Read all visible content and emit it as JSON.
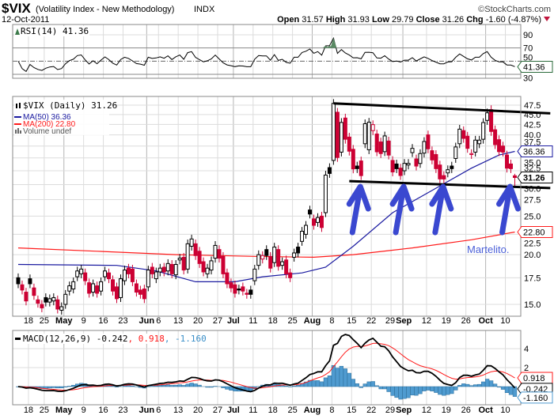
{
  "header": {
    "symbol": "$VIX",
    "name": "(Volatility Index - New Methodology)",
    "exchange": "INDX",
    "date": "12-Oct-2011",
    "copyright": "©StockCharts.com",
    "open_label": "Open",
    "open": "31.57",
    "high_label": "High",
    "high": "31.93",
    "low_label": "Low",
    "low": "29.79",
    "close_label": "Close",
    "close": "31.26",
    "chg_label": "Chg",
    "chg": "-1.60 (-4.87%)",
    "down_color": "#c0143c"
  },
  "rsi_panel": {
    "label": "RSI(14) 41.36",
    "value_box": "41.36",
    "ticks": [
      "90",
      "70",
      "50",
      "30"
    ]
  },
  "price_panel": {
    "legend": {
      "main": "$VIX (Daily) 31.26",
      "ma50": "MA(50) 36.36",
      "ma200": "MA(200) 22.80",
      "volume": "Volume undef"
    },
    "value_boxes": {
      "ma50": "36.36",
      "close": "31.26",
      "ma200": "22.80"
    },
    "annotation": "Martelito.",
    "colors": {
      "ma50": "#1a1aa0",
      "ma200": "#ff1a1a",
      "down": "#cc0033",
      "up": "#000000",
      "annotation": "#4a5fd8"
    }
  },
  "macd_panel": {
    "label_main": "MACD(12,26,9) -0.242",
    "label_signal": ", 0.918",
    "label_hist": ", -1.160",
    "boxes": {
      "macd": "-0.242",
      "signal": "0.918",
      "hist": "-1.160"
    },
    "ticks": [
      "4",
      "2"
    ],
    "colors": {
      "macd": "#000000",
      "signal": "#ff1a1a",
      "hist": "#4f9bd0"
    }
  },
  "date_labels": [
    {
      "t": "18",
      "i": 3
    },
    {
      "t": "25",
      "i": 7
    },
    {
      "t": "May",
      "i": 12,
      "b": true
    },
    {
      "t": "9",
      "i": 17
    },
    {
      "t": "16",
      "i": 22
    },
    {
      "t": "23",
      "i": 27
    },
    {
      "t": "Jun",
      "i": 33,
      "b": true
    },
    {
      "t": "6",
      "i": 36
    },
    {
      "t": "13",
      "i": 41
    },
    {
      "t": "20",
      "i": 46
    },
    {
      "t": "27",
      "i": 51
    },
    {
      "t": "Jul",
      "i": 55,
      "b": true
    },
    {
      "t": "11",
      "i": 60
    },
    {
      "t": "18",
      "i": 65
    },
    {
      "t": "25",
      "i": 70
    },
    {
      "t": "Aug",
      "i": 75,
      "b": true
    },
    {
      "t": "8",
      "i": 80
    },
    {
      "t": "15",
      "i": 85
    },
    {
      "t": "22",
      "i": 90
    },
    {
      "t": "29",
      "i": 95
    },
    {
      "t": "Sep",
      "i": 98,
      "b": true
    },
    {
      "t": "12",
      "i": 104
    },
    {
      "t": "19",
      "i": 109
    },
    {
      "t": "26",
      "i": 114
    },
    {
      "t": "Oct",
      "i": 119,
      "b": true
    },
    {
      "t": "10",
      "i": 124
    }
  ],
  "chart_data": {
    "type": "candlestick",
    "title": "$VIX (Daily)",
    "yscale": "log",
    "ylim": [
      13.5,
      50
    ],
    "yticks": [
      15.0,
      17.5,
      20.0,
      22.5,
      25.0,
      27.5,
      30.0,
      32.5,
      35.0,
      37.5,
      40.0,
      42.5,
      45.0,
      47.5
    ],
    "ytick_labels": [
      "15.0",
      "17.5",
      "20.0",
      "22.5",
      "25.0",
      "27.5",
      "30.0",
      "32.5",
      "35.0",
      "37.5",
      "40.0",
      "42.5",
      "45.0",
      "47.5"
    ],
    "period": "13-Apr-2011 to 12-Oct-2011",
    "open": [
      17.5,
      16.8,
      16.1,
      17.4,
      16.5,
      15.4,
      15.0,
      15.6,
      15.2,
      15.3,
      15.4,
      14.5,
      15.0,
      16.2,
      16.4,
      17.6,
      17.9,
      18.0,
      17.0,
      16.1,
      16.7,
      16.2,
      17.6,
      18.0,
      17.3,
      16.6,
      15.6,
      17.2,
      18.5,
      18.4,
      16.9,
      16.3,
      16.4,
      16.6,
      18.6,
      17.4,
      18.1,
      18.6,
      18.2,
      18.9,
      17.8,
      19.4,
      19.7,
      18.4,
      21.0,
      21.3,
      20.4,
      19.2,
      17.9,
      18.3,
      19.6,
      20.6,
      19.8,
      18.0,
      17.0,
      16.8,
      16.4,
      16.6,
      16.0,
      16.3,
      17.2,
      18.8,
      19.5,
      20.6,
      19.8,
      19.1,
      20.6,
      18.8,
      19.4,
      18.0,
      19.7,
      20.9,
      21.6,
      22.5,
      25.9,
      24.6,
      24.1,
      25.0,
      25.5,
      33.1,
      34.5,
      45.6,
      36.2,
      44.1,
      39.5,
      36.8,
      33.4,
      34.4,
      38.0,
      36.7,
      41.0,
      40.2,
      38.4,
      36.3,
      38.6,
      34.5,
      33.8,
      33.0,
      32.5,
      33.6,
      36.1,
      34.8,
      33.9,
      36.0,
      40.0,
      36.5,
      35.7,
      33.6,
      31.6,
      32.1,
      33.4,
      34.9,
      38.0,
      41.0,
      39.7,
      35.7,
      36.2,
      38.0,
      39.0,
      43.5,
      46.3,
      41.2,
      38.9,
      37.5,
      35.6,
      33.8,
      31.57
    ],
    "close": [
      16.9,
      16.3,
      15.3,
      16.9,
      15.8,
      15.1,
      14.7,
      15.2,
      15.5,
      15.6,
      14.6,
      14.8,
      15.9,
      16.7,
      17.1,
      18.2,
      18.4,
      17.2,
      16.0,
      16.9,
      16.0,
      17.1,
      18.2,
      17.4,
      16.2,
      15.5,
      17.4,
      18.3,
      17.9,
      17.1,
      16.1,
      15.9,
      15.5,
      18.3,
      17.9,
      18.1,
      18.5,
      18.1,
      19.0,
      17.9,
      18.9,
      19.6,
      18.3,
      21.3,
      21.9,
      19.9,
      19.0,
      18.1,
      18.5,
      19.3,
      21.1,
      19.6,
      17.9,
      16.9,
      16.5,
      16.0,
      16.3,
      16.2,
      15.9,
      15.9,
      18.4,
      20.0,
      19.9,
      19.9,
      18.5,
      20.9,
      18.7,
      19.2,
      17.9,
      17.5,
      20.2,
      20.2,
      22.9,
      23.7,
      25.3,
      23.7,
      24.8,
      23.4,
      31.7,
      32.0,
      48.0,
      35.1,
      42.99,
      39.0,
      36.4,
      32.85,
      32.9,
      31.6,
      42.67,
      43.05,
      42.44,
      36.27,
      35.9,
      39.76,
      35.59,
      32.28,
      32.89,
      31.62,
      33.92,
      33.92,
      37.0,
      33.4,
      35.9,
      38.5,
      36.9,
      34.6,
      32.9,
      31.0,
      30.98,
      32.7,
      32.9,
      37.3,
      41.35,
      39.2,
      37.0,
      35.9,
      38.8,
      38.8,
      42.96,
      45.45,
      40.8,
      37.8,
      36.3,
      36.2,
      33.0,
      32.9,
      31.26
    ],
    "last_bar": {
      "open": 31.57,
      "high": 31.93,
      "low": 29.79,
      "close": 31.26
    },
    "ma50_points": [
      [
        0,
        18.9
      ],
      [
        25,
        18.8
      ],
      [
        35,
        18.2
      ],
      [
        45,
        17.1
      ],
      [
        55,
        17.1
      ],
      [
        62,
        17.6
      ],
      [
        72,
        18.0
      ],
      [
        78,
        18.6
      ],
      [
        85,
        21.0
      ],
      [
        95,
        25.5
      ],
      [
        105,
        29.0
      ],
      [
        115,
        33.0
      ],
      [
        122,
        35.6
      ],
      [
        126,
        36.36
      ]
    ],
    "ma200_points": [
      [
        0,
        20.8
      ],
      [
        20,
        20.4
      ],
      [
        40,
        20.0
      ],
      [
        60,
        19.8
      ],
      [
        75,
        19.7
      ],
      [
        85,
        20.0
      ],
      [
        100,
        20.8
      ],
      [
        115,
        21.8
      ],
      [
        126,
        22.8
      ]
    ],
    "trendlines": [
      {
        "name": "resistance",
        "from": [
          80,
          48.0
        ],
        "to": [
          135,
          45.3
        ]
      },
      {
        "name": "support",
        "from": [
          84,
          30.6
        ],
        "to": [
          135,
          29.4
        ]
      }
    ],
    "arrows_at": [
      86,
      97,
      107,
      124
    ]
  }
}
